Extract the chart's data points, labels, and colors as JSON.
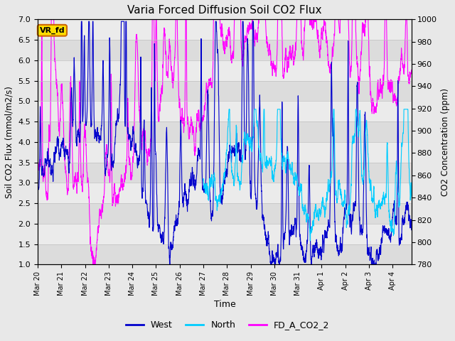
{
  "title": "Varia Forced Diffusion Soil CO2 Flux",
  "xlabel": "Time",
  "ylabel_left": "Soil CO2 Flux (mmol/m2/s)",
  "ylabel_right": "CO2 Concentration (ppm)",
  "ylim_left": [
    1.0,
    7.0
  ],
  "ylim_right": [
    780,
    1000
  ],
  "yticks_left": [
    1.0,
    1.5,
    2.0,
    2.5,
    3.0,
    3.5,
    4.0,
    4.5,
    5.0,
    5.5,
    6.0,
    6.5,
    7.0
  ],
  "yticks_right": [
    780,
    800,
    820,
    840,
    860,
    880,
    900,
    920,
    940,
    960,
    980,
    1000
  ],
  "colors": {
    "west": "#0000cc",
    "north": "#00ccff",
    "co2": "#ff00ff"
  },
  "legend_labels": [
    "West",
    "North",
    "FD_A_CO2_2"
  ],
  "annotation_text": "VR_fd",
  "annotation_bg": "#ffdd00",
  "annotation_border": "#cc6600",
  "background_color": "#e8e8e8",
  "band_colors": [
    "#dcdcdc",
    "#ebebeb"
  ],
  "seed": 42
}
